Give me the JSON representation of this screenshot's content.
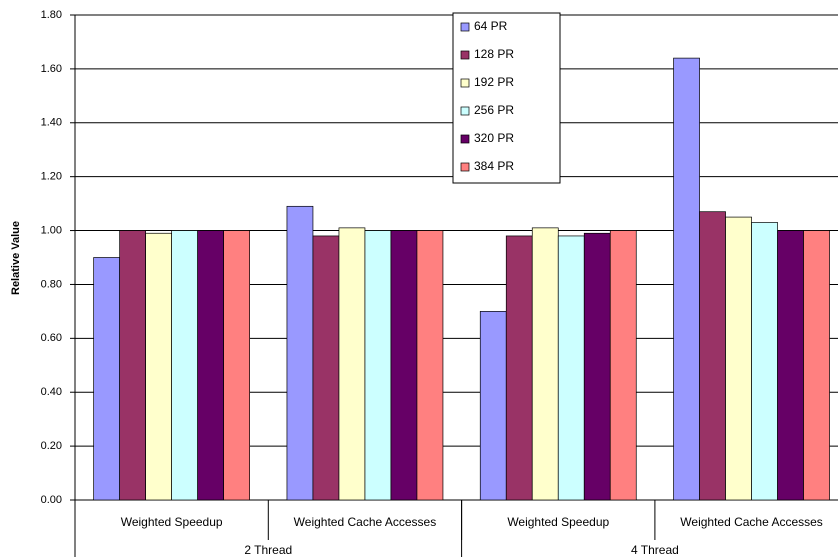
{
  "chart_data": {
    "type": "bar",
    "y_label": "Relative Value",
    "categories": [
      "Weighted Speedup",
      "Weighted Cache Accesses",
      "Weighted Speedup",
      "Weighted Cache Accesses"
    ],
    "groups": [
      {
        "label": "2 Thread",
        "span": 2
      },
      {
        "label": "4 Thread",
        "span": 2
      }
    ],
    "series": [
      {
        "name": "64 PR",
        "color": "#9999ff",
        "values": [
          0.9,
          1.09,
          0.7,
          1.64
        ]
      },
      {
        "name": "128 PR",
        "color": "#993366",
        "values": [
          1.0,
          0.98,
          0.98,
          1.07
        ]
      },
      {
        "name": "192 PR",
        "color": "#ffffcc",
        "values": [
          0.99,
          1.01,
          1.01,
          1.05
        ]
      },
      {
        "name": "256 PR",
        "color": "#ccffff",
        "values": [
          1.0,
          1.0,
          0.98,
          1.03
        ]
      },
      {
        "name": "320 PR",
        "color": "#660066",
        "values": [
          1.0,
          1.0,
          0.99,
          1.0
        ]
      },
      {
        "name": "384 PR",
        "color": "#ff8080",
        "values": [
          1.0,
          1.0,
          1.0,
          1.0
        ]
      }
    ],
    "ylim": [
      0,
      1.8
    ],
    "yticks": [
      {
        "value": 0,
        "label": "0.00"
      },
      {
        "value": 0.2,
        "label": "0.20"
      },
      {
        "value": 0.4,
        "label": "0.40"
      },
      {
        "value": 0.6,
        "label": "0.60"
      },
      {
        "value": 0.8,
        "label": "0.80"
      },
      {
        "value": 1,
        "label": "1.00"
      },
      {
        "value": 1.2,
        "label": "1.20"
      },
      {
        "value": 1.4,
        "label": "1.40"
      },
      {
        "value": 1.6,
        "label": "1.60"
      },
      {
        "value": 1.8,
        "label": "1.80"
      }
    ],
    "grid": true,
    "legend": "top-center"
  }
}
